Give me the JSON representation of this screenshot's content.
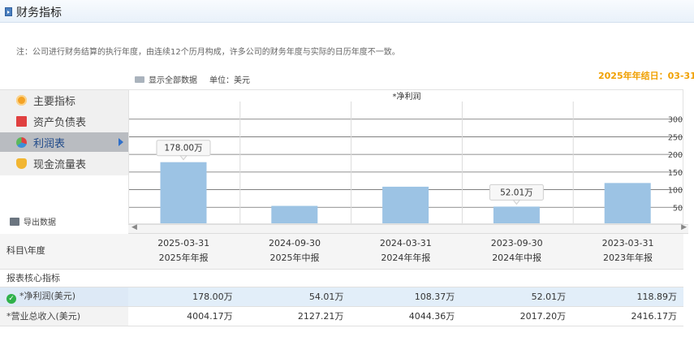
{
  "header": {
    "title": "财务指标"
  },
  "note": "注：公司进行财务结算的执行年度，由连续12个历月构成，许多公司的财务年度与实际的日历年度不一致。",
  "toolbar": {
    "show_all_label": "显示全部数据",
    "unit_label": "单位：美元",
    "fiscal_year_end": "2025年年结日：03-31"
  },
  "sidebar": {
    "items": [
      {
        "label": "主要指标",
        "icon": "gear-icon"
      },
      {
        "label": "资产负债表",
        "icon": "document-icon"
      },
      {
        "label": "利润表",
        "icon": "pie-chart-icon"
      },
      {
        "label": "现金流量表",
        "icon": "coins-icon"
      }
    ]
  },
  "export_label": "导出数据",
  "chart_data": {
    "type": "bar",
    "title": "*净利润",
    "categories": [
      "2025-03-31",
      "2024-09-30",
      "2024-03-31",
      "2023-09-30",
      "2023-03-31"
    ],
    "values": [
      178.0,
      54.01,
      108.37,
      52.01,
      118.89
    ],
    "ylim": [
      0,
      350
    ],
    "yticks": [
      50,
      100,
      150,
      200,
      250,
      300
    ],
    "ytick_labels": [
      "50",
      "100",
      "150",
      "200",
      "250",
      "300"
    ],
    "data_labels": [
      {
        "index": 0,
        "text": "178.00万"
      },
      {
        "index": 3,
        "text": "52.01万"
      }
    ],
    "grid": true,
    "color": "#9cc3e4"
  },
  "table": {
    "header_label": "科目\\年度",
    "columns": [
      {
        "date": "2025-03-31",
        "report": "2025年年报"
      },
      {
        "date": "2024-09-30",
        "report": "2025年中报"
      },
      {
        "date": "2024-03-31",
        "report": "2024年年报"
      },
      {
        "date": "2023-09-30",
        "report": "2024年中报"
      },
      {
        "date": "2023-03-31",
        "report": "2023年年报"
      }
    ],
    "section_label": "报表核心指标",
    "rows": [
      {
        "label": "*净利润(美元)",
        "values": [
          "178.00万",
          "54.01万",
          "108.37万",
          "52.01万",
          "118.89万"
        ]
      },
      {
        "label": "*营业总收入(美元)",
        "values": [
          "4004.17万",
          "2127.21万",
          "4044.36万",
          "2017.20万",
          "2416.17万"
        ]
      }
    ]
  }
}
